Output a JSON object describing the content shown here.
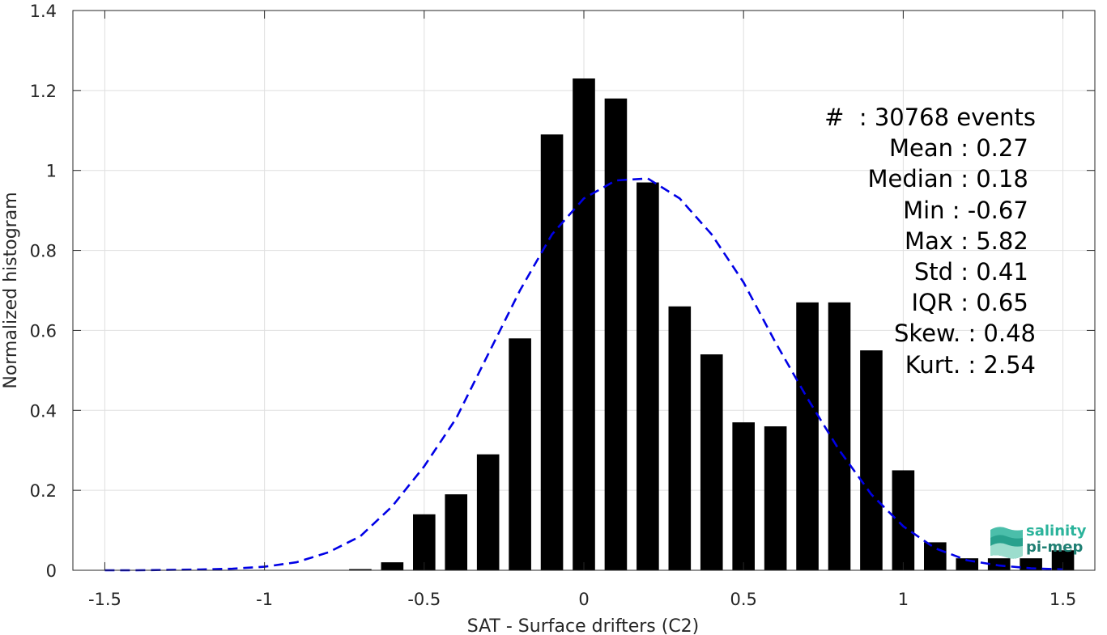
{
  "chart_data": {
    "type": "bar",
    "xlabel": "SAT - Surface drifters (C2)",
    "ylabel": "Normalized histogram",
    "xlim": [
      -1.6,
      1.6
    ],
    "ylim": [
      0,
      1.4
    ],
    "grid": true,
    "xticks": [
      -1.5,
      -1,
      -0.5,
      0,
      0.5,
      1,
      1.5
    ],
    "xtick_labels": [
      "-1.5",
      "-1",
      "-0.5",
      "0",
      "0.5",
      "1",
      "1.5"
    ],
    "yticks": [
      0,
      0.2,
      0.4,
      0.6,
      0.8,
      1,
      1.2,
      1.4
    ],
    "ytick_labels": [
      "0",
      "0.2",
      "0.4",
      "0.6",
      "0.8",
      "1",
      "1.2",
      "1.4"
    ],
    "bin_width": 0.1,
    "bars": [
      {
        "x": -0.7,
        "value": 0.003
      },
      {
        "x": -0.6,
        "value": 0.02
      },
      {
        "x": -0.5,
        "value": 0.14
      },
      {
        "x": -0.4,
        "value": 0.19
      },
      {
        "x": -0.3,
        "value": 0.29
      },
      {
        "x": -0.2,
        "value": 0.58
      },
      {
        "x": -0.1,
        "value": 1.09
      },
      {
        "x": 0.0,
        "value": 1.23
      },
      {
        "x": 0.1,
        "value": 1.18
      },
      {
        "x": 0.2,
        "value": 0.97
      },
      {
        "x": 0.3,
        "value": 0.66
      },
      {
        "x": 0.4,
        "value": 0.54
      },
      {
        "x": 0.5,
        "value": 0.37
      },
      {
        "x": 0.6,
        "value": 0.36
      },
      {
        "x": 0.7,
        "value": 0.67
      },
      {
        "x": 0.8,
        "value": 0.67
      },
      {
        "x": 0.9,
        "value": 0.55
      },
      {
        "x": 1.0,
        "value": 0.25
      },
      {
        "x": 1.1,
        "value": 0.07
      },
      {
        "x": 1.2,
        "value": 0.03
      },
      {
        "x": 1.3,
        "value": 0.03
      },
      {
        "x": 1.4,
        "value": 0.03
      },
      {
        "x": 1.5,
        "value": 0.05
      }
    ],
    "fit_curve": {
      "style": "dashed",
      "color": "#0000e6",
      "x": [
        -1.5,
        -1.4,
        -1.3,
        -1.2,
        -1.1,
        -1.0,
        -0.9,
        -0.8,
        -0.7,
        -0.6,
        -0.5,
        -0.4,
        -0.3,
        -0.2,
        -0.1,
        0.0,
        0.1,
        0.2,
        0.3,
        0.4,
        0.5,
        0.6,
        0.7,
        0.8,
        0.9,
        1.0,
        1.1,
        1.2,
        1.3,
        1.4,
        1.5
      ],
      "y": [
        0.0,
        0.0,
        0.001,
        0.002,
        0.004,
        0.009,
        0.02,
        0.045,
        0.085,
        0.16,
        0.26,
        0.38,
        0.54,
        0.7,
        0.84,
        0.93,
        0.975,
        0.98,
        0.93,
        0.84,
        0.72,
        0.57,
        0.43,
        0.3,
        0.19,
        0.11,
        0.055,
        0.025,
        0.012,
        0.005,
        0.002
      ]
    },
    "bar_color": "#000000"
  },
  "stats": [
    "#  : 30768 events",
    "Mean : 0.27 ",
    "Median : 0.18 ",
    "Min : -0.67 ",
    "Max : 5.82 ",
    "Std : 0.41 ",
    "IQR : 0.65 ",
    "Skew. : 0.48",
    "Kurt. : 2.54"
  ],
  "logo": {
    "line1": "salinity",
    "line2": "pi-mep",
    "color_primary": "#2bb39b",
    "color_secondary": "#1f7f73"
  }
}
